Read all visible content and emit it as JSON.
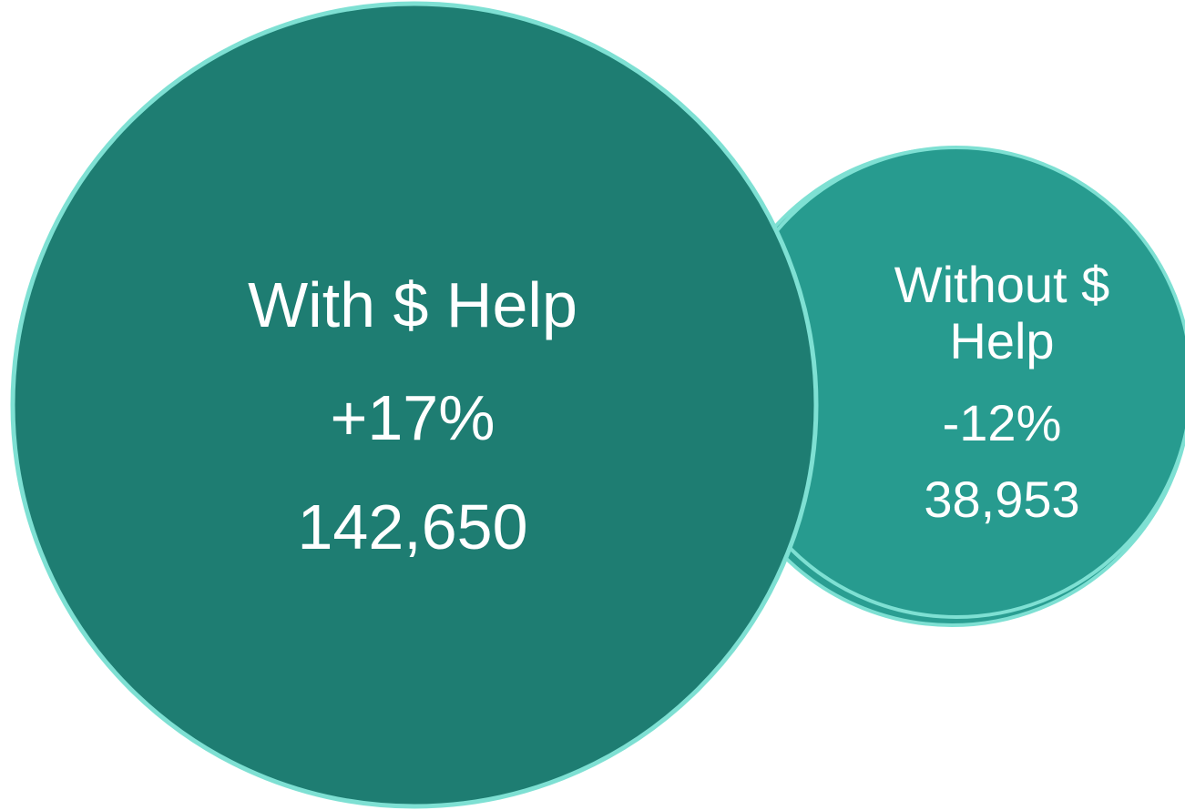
{
  "bubbles": {
    "with_help": {
      "title": "With $ Help",
      "change": "+17%",
      "count": "142,650"
    },
    "without_help": {
      "title_line1": "Without $",
      "title_line2": "Help",
      "change": "-12%",
      "count": "38,953"
    }
  },
  "colors": {
    "big_fill": "#1E7D72",
    "small_fill": "#279B8F",
    "outline": "#7EE0D3",
    "text": "#FFFFFF"
  }
}
